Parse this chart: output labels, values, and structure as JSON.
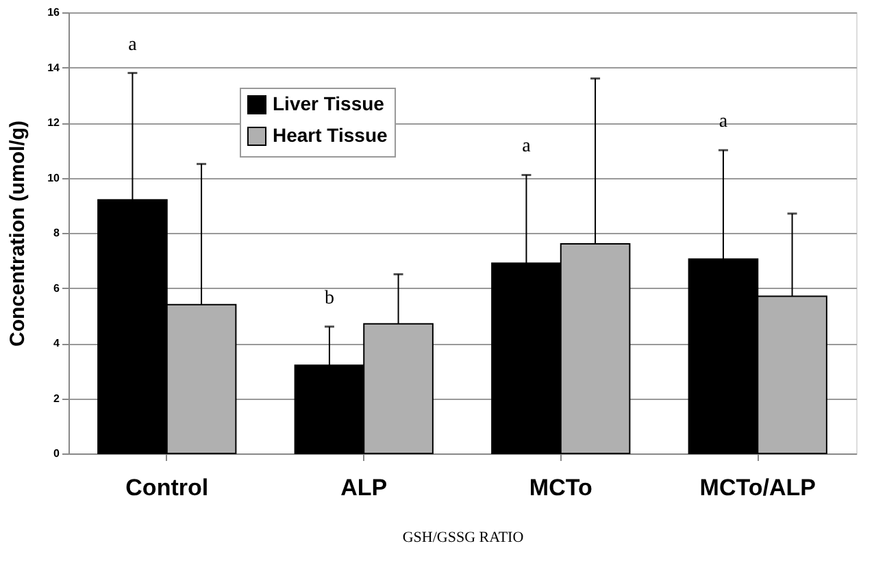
{
  "chart_data": {
    "type": "bar",
    "xlabel": "GSH/GSSG RATIO",
    "ylabel": "Concentration (umol/g)",
    "categories": [
      "Control",
      "ALP",
      "MCTo",
      "MCTo/ALP"
    ],
    "series": [
      {
        "name": "Liver Tissue",
        "color": "#000000",
        "values": [
          9.2,
          3.2,
          6.9,
          7.05
        ],
        "errors": [
          [
            9.2,
            13.8
          ],
          [
            3.2,
            4.6
          ],
          [
            6.9,
            10.1
          ],
          [
            7.05,
            11.0
          ]
        ]
      },
      {
        "name": "Heart Tissue",
        "color": "#b0b0b0",
        "values": [
          5.4,
          4.7,
          7.6,
          5.7
        ],
        "errors": [
          [
            5.4,
            10.5
          ],
          [
            4.7,
            6.5
          ],
          [
            7.6,
            13.6
          ],
          [
            5.7,
            8.7
          ]
        ]
      }
    ],
    "annotations": [
      "a",
      "b",
      "a",
      "a"
    ],
    "ylim": [
      0,
      16
    ],
    "yticks": [
      0,
      2,
      4,
      6,
      8,
      10,
      12,
      14,
      16
    ],
    "grid": "y",
    "legend": "top left"
  }
}
